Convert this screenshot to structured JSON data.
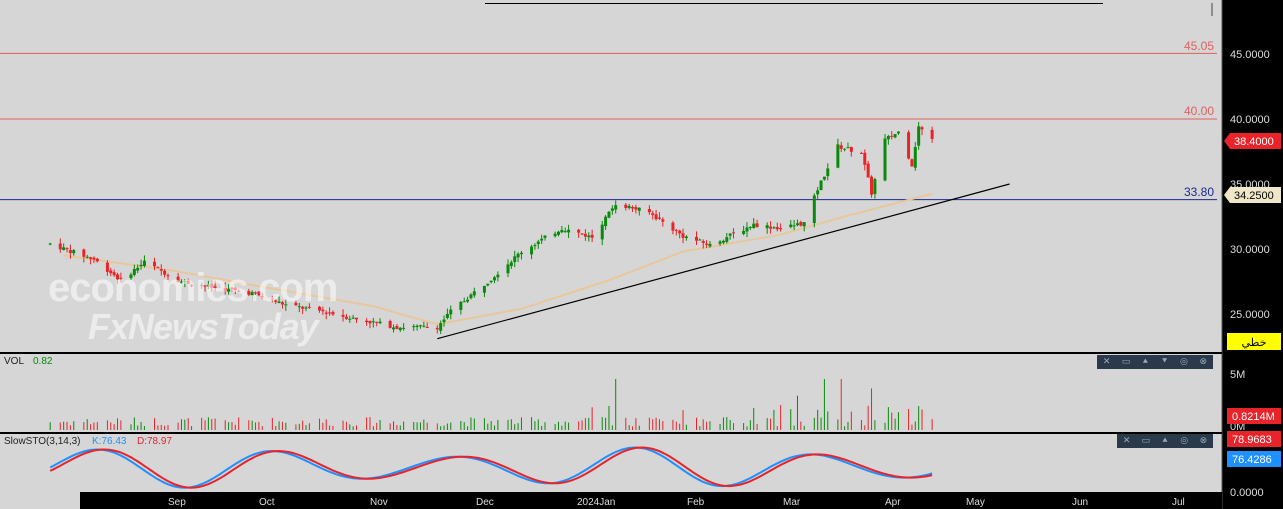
{
  "watermark": {
    "line1": "economies.com",
    "line2": "FxNewsToday"
  },
  "main_panel": {
    "right_axis_ticks": [
      "45.0000",
      "40.0000",
      "35.0000",
      "30.0000",
      "25.0000"
    ],
    "h_lines": [
      {
        "label": "45.05",
        "value": 45.05,
        "color": "#e06060"
      },
      {
        "label": "40.00",
        "value": 40.0,
        "color": "#e06060"
      },
      {
        "label": "33.80",
        "value": 33.8,
        "color": "#1a2a8a"
      }
    ],
    "price_badge": {
      "text": "38.4000",
      "color": "#e8232a"
    },
    "ma_badge": {
      "text": "34.2500",
      "color": "#f0e6c8"
    },
    "mode_badge": {
      "text": "خطي",
      "color": "#ffff00"
    }
  },
  "vol_panel": {
    "title": "VOL",
    "value": "0.82",
    "axis_ticks": [
      "5M",
      "0M"
    ],
    "badge": {
      "text": "0.8214M",
      "color": "#e8232a"
    }
  },
  "sto_panel": {
    "title": "SlowSTO(3,14,3)",
    "k_label": "K:76.43",
    "d_label": "D:78.97",
    "axis_tick": "0.0000",
    "d_badge": {
      "text": "78.9683",
      "color": "#e8232a"
    },
    "k_badge": {
      "text": "76.4286",
      "color": "#1e90ff"
    }
  },
  "x_axis": {
    "labels": [
      "Sep",
      "Oct",
      "Nov",
      "Dec",
      "2024Jan",
      "Feb",
      "Mar",
      "Apr",
      "May",
      "Jun",
      "Jul"
    ]
  },
  "panel_controls": [
    "close-icon",
    "window-icon",
    "arrow-up-icon",
    "arrow-down-icon",
    "settings-icon",
    "close-icon"
  ],
  "chart_data": {
    "type": "candlestick",
    "price_range": [
      22.6,
      48.0
    ],
    "trendline": {
      "start": [
        "2023-11-20",
        23.1
      ],
      "end": [
        "2024-05-08",
        35.0
      ]
    },
    "moving_average_last": 34.25,
    "last_close": 38.4,
    "horizontal_levels": [
      45.05,
      40.0,
      33.8
    ],
    "price_key_points": [
      [
        "2023-07-28",
        30.4
      ],
      [
        "2023-08-10",
        29.2
      ],
      [
        "2023-08-18",
        27.6
      ],
      [
        "2023-08-25",
        29.0
      ],
      [
        "2023-09-05",
        27.5
      ],
      [
        "2023-09-15",
        27.0
      ],
      [
        "2023-09-26",
        26.6
      ],
      [
        "2023-10-06",
        25.7
      ],
      [
        "2023-10-17",
        25.2
      ],
      [
        "2023-10-27",
        24.6
      ],
      [
        "2023-11-08",
        24.0
      ],
      [
        "2023-11-20",
        24.0
      ],
      [
        "2023-11-24",
        25.2
      ],
      [
        "2023-12-05",
        27.5
      ],
      [
        "2023-12-15",
        29.8
      ],
      [
        "2023-12-27",
        31.6
      ],
      [
        "2024-01-05",
        30.9
      ],
      [
        "2024-01-12",
        33.5
      ],
      [
        "2024-01-22",
        32.8
      ],
      [
        "2024-02-01",
        31.0
      ],
      [
        "2024-02-09",
        30.3
      ],
      [
        "2024-02-22",
        31.9
      ],
      [
        "2024-03-01",
        31.6
      ],
      [
        "2024-03-08",
        32.0
      ],
      [
        "2024-03-12",
        34.6
      ],
      [
        "2024-03-18",
        37.9
      ],
      [
        "2024-03-25",
        37.4
      ],
      [
        "2024-03-28",
        34.3
      ],
      [
        "2024-04-01",
        38.4
      ],
      [
        "2024-04-05",
        39.0
      ],
      [
        "2024-04-09",
        36.5
      ],
      [
        "2024-04-11",
        39.4
      ],
      [
        "2024-04-15",
        38.4
      ]
    ],
    "ma_key_points": [
      [
        "2023-08-01",
        29.5
      ],
      [
        "2023-09-01",
        28.4
      ],
      [
        "2023-10-01",
        27.0
      ],
      [
        "2023-11-01",
        25.6
      ],
      [
        "2023-11-20",
        24.2
      ],
      [
        "2023-12-15",
        25.4
      ],
      [
        "2024-01-10",
        27.6
      ],
      [
        "2024-02-01",
        29.8
      ],
      [
        "2024-03-01",
        31.1
      ],
      [
        "2024-03-20",
        32.5
      ],
      [
        "2024-04-15",
        34.25
      ]
    ],
    "volume_axis": [
      0,
      5
    ],
    "volume_spikes_millions": [
      [
        "2024-01-12",
        4.9
      ],
      [
        "2024-03-06",
        3.3
      ],
      [
        "2024-03-14",
        4.9
      ],
      [
        "2024-03-19",
        3.7
      ],
      [
        "2024-03-28",
        2.8
      ],
      [
        "2024-04-02",
        2.2
      ]
    ],
    "stochastic": {
      "k_last": 76.43,
      "d_last": 78.97,
      "range": [
        0,
        100
      ]
    }
  }
}
